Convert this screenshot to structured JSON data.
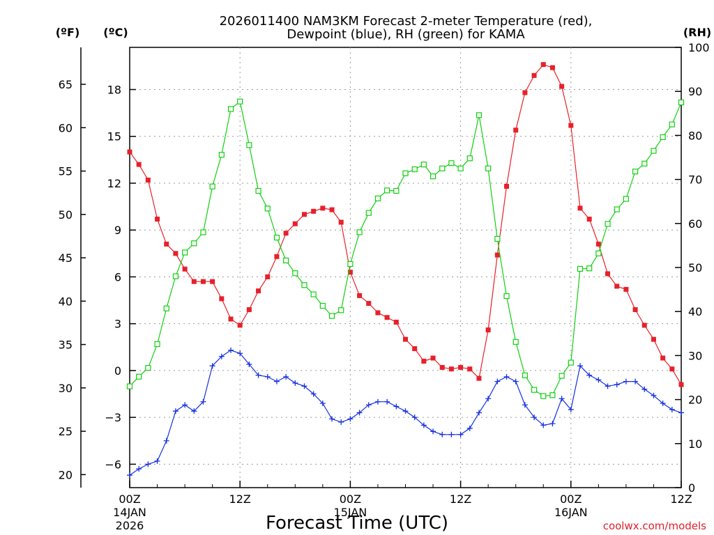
{
  "chart_data": {
    "type": "line",
    "title": [
      "2026011400 NAM3KM Forecast 2-meter Temperature (red),",
      "Dewpoint (blue), RH (green) for KAMA"
    ],
    "xlabel": "Forecast Time (UTC)",
    "credit": "coolwx.com/models",
    "unit_f": "(ºF)",
    "unit_c": "(ºC)",
    "unit_rh": "(RH)",
    "x_hours_range": [
      0,
      60
    ],
    "x_ticks": [
      {
        "hour": 0,
        "label": "00Z",
        "sub1": "14JAN",
        "sub2": "2026"
      },
      {
        "hour": 12,
        "label": "12Z",
        "sub1": "",
        "sub2": ""
      },
      {
        "hour": 24,
        "label": "00Z",
        "sub1": "15JAN",
        "sub2": ""
      },
      {
        "hour": 36,
        "label": "12Z",
        "sub1": "",
        "sub2": ""
      },
      {
        "hour": 48,
        "label": "00Z",
        "sub1": "16JAN",
        "sub2": ""
      },
      {
        "hour": 60,
        "label": "12Z",
        "sub1": "",
        "sub2": ""
      }
    ],
    "ylim_c": [
      -7.5,
      20.7
    ],
    "y_ticks_c": [
      -6,
      -3,
      0,
      3,
      6,
      9,
      12,
      15,
      18
    ],
    "y_ticks_c_labels": [
      "−6",
      "−3",
      "0",
      "3",
      "6",
      "9",
      "12",
      "15",
      "18"
    ],
    "y_ticks_f": [
      20,
      25,
      30,
      35,
      40,
      45,
      50,
      55,
      60,
      65
    ],
    "ylim_rh": [
      0,
      100
    ],
    "y_ticks_rh": [
      0,
      10,
      20,
      30,
      40,
      50,
      60,
      70,
      80,
      90,
      100
    ],
    "series": [
      {
        "name": "2-meter Temperature",
        "unit": "C",
        "color": "#e8202a",
        "marker": "filled-square",
        "values": [
          14.0,
          13.2,
          12.2,
          9.7,
          8.1,
          7.5,
          6.5,
          5.7,
          5.7,
          5.7,
          4.6,
          3.3,
          2.9,
          3.9,
          5.1,
          6.0,
          7.3,
          8.8,
          9.4,
          10.0,
          10.2,
          10.4,
          10.3,
          9.5,
          6.3,
          4.8,
          4.3,
          3.7,
          3.4,
          3.1,
          2.0,
          1.4,
          0.6,
          0.8,
          0.2,
          0.1,
          0.2,
          0.1,
          -0.5,
          2.6,
          7.4,
          11.8,
          15.4,
          17.8,
          18.9,
          19.6,
          19.4,
          18.2,
          15.7,
          10.4,
          9.7,
          8.1,
          6.2,
          5.4,
          5.2,
          3.9,
          2.9,
          2.0,
          0.8,
          0.1,
          -0.9
        ]
      },
      {
        "name": "Dewpoint",
        "unit": "C",
        "color": "#1530e0",
        "marker": "plus",
        "values": [
          -6.7,
          -6.3,
          -6.0,
          -5.8,
          -4.5,
          -2.6,
          -2.2,
          -2.6,
          -2.0,
          0.3,
          0.9,
          1.3,
          1.1,
          0.4,
          -0.3,
          -0.4,
          -0.7,
          -0.4,
          -0.8,
          -1.0,
          -1.5,
          -2.1,
          -3.1,
          -3.3,
          -3.1,
          -2.7,
          -2.2,
          -2.0,
          -2.0,
          -2.3,
          -2.6,
          -3.0,
          -3.5,
          -3.9,
          -4.1,
          -4.1,
          -4.1,
          -3.7,
          -2.7,
          -1.8,
          -0.7,
          -0.4,
          -0.7,
          -2.2,
          -3.0,
          -3.5,
          -3.4,
          -1.8,
          -2.5,
          0.3,
          -0.3,
          -0.6,
          -1.0,
          -0.9,
          -0.7,
          -0.7,
          -1.2,
          -1.6,
          -2.1,
          -2.5,
          -2.7
        ]
      },
      {
        "name": "RH",
        "unit": "%",
        "color": "#10d010",
        "marker": "open-square",
        "values": [
          23.0,
          25.2,
          27.2,
          32.6,
          40.7,
          48.0,
          53.4,
          55.5,
          58.0,
          68.4,
          75.6,
          86.0,
          87.7,
          77.8,
          67.4,
          63.4,
          56.8,
          51.6,
          48.7,
          46.0,
          43.9,
          41.3,
          39.0,
          40.3,
          50.8,
          58.0,
          62.4,
          65.7,
          67.5,
          67.4,
          71.4,
          72.3,
          73.4,
          70.7,
          72.5,
          73.7,
          72.5,
          74.8,
          84.6,
          72.5,
          56.5,
          43.5,
          33.1,
          25.5,
          22.2,
          20.8,
          21.0,
          25.4,
          28.4,
          49.7,
          49.8,
          53.2,
          59.9,
          63.2,
          65.6,
          71.8,
          73.6,
          76.5,
          79.6,
          82.5,
          87.5
        ]
      }
    ]
  }
}
